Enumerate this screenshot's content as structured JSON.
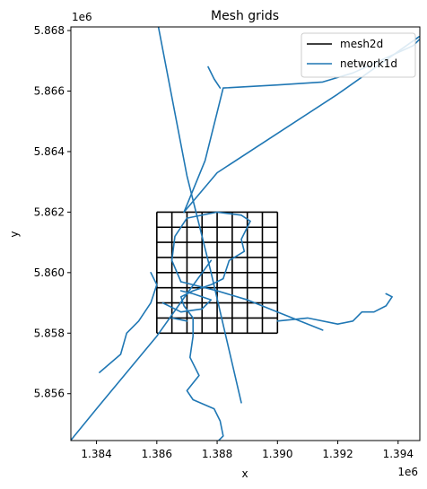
{
  "chart_data": {
    "type": "line",
    "title": "Mesh grids",
    "xlabel": "x",
    "ylabel": "y",
    "x_offset_text": "1e6",
    "y_offset_text": "1e6",
    "xlim": [
      1.38315,
      1.39472
    ],
    "ylim": [
      5.85445,
      5.86812
    ],
    "x_ticks": [
      1.384,
      1.386,
      1.388,
      1.39,
      1.392,
      1.394
    ],
    "x_tick_labels": [
      "1.384",
      "1.386",
      "1.388",
      "1.390",
      "1.392",
      "1.394"
    ],
    "y_ticks": [
      5.856,
      5.858,
      5.86,
      5.862,
      5.864,
      5.866,
      5.868
    ],
    "y_tick_labels": [
      "5.856",
      "5.858",
      "5.860",
      "5.862",
      "5.864",
      "5.866",
      "5.868"
    ],
    "grid": false,
    "legend": {
      "position": "top-right",
      "entries": [
        {
          "name": "mesh2d",
          "color": "#000000"
        },
        {
          "name": "network1d",
          "color": "#1f77b4"
        }
      ]
    },
    "series": [
      {
        "name": "mesh2d",
        "kind": "grid",
        "color": "#000000",
        "x_lines": [
          1.386,
          1.3865,
          1.387,
          1.3875,
          1.388,
          1.3885,
          1.389,
          1.3895,
          1.39
        ],
        "y_lines": [
          5.858,
          5.8585,
          5.859,
          5.8595,
          5.86,
          5.8605,
          5.861,
          5.8615,
          5.862
        ]
      },
      {
        "name": "network1d",
        "kind": "polylines",
        "color": "#1f77b4",
        "polylines": [
          [
            [
              1.3831,
              5.8544
            ],
            [
              1.384,
              5.8555
            ],
            [
              1.385,
              5.8567
            ],
            [
              1.386,
              5.8579
            ],
            [
              1.387,
              5.8593
            ],
            [
              1.3878,
              5.8604
            ]
          ],
          [
            [
              1.386,
              5.8684
            ],
            [
              1.387,
              5.8632
            ],
            [
              1.3878,
              5.86
            ],
            [
              1.3888,
              5.8557
            ]
          ],
          [
            [
              1.3869,
              5.862
            ],
            [
              1.388,
              5.8633
            ],
            [
              1.39,
              5.8646
            ],
            [
              1.392,
              5.8659
            ],
            [
              1.3947,
              5.8678
            ]
          ],
          [
            [
              1.3869,
              5.862
            ],
            [
              1.3876,
              5.8637
            ],
            [
              1.388,
              5.8653
            ],
            [
              1.3882,
              5.8661
            ],
            [
              1.39,
              5.8662
            ],
            [
              1.3915,
              5.8663
            ],
            [
              1.3925,
              5.8666
            ],
            [
              1.3945,
              5.8675
            ],
            [
              1.3947,
              5.8677
            ]
          ],
          [
            [
              1.3877,
              5.8668
            ],
            [
              1.3879,
              5.8664
            ],
            [
              1.3881,
              5.8661
            ]
          ],
          [
            [
              1.3868,
              5.8597
            ],
            [
              1.388,
              5.8594
            ],
            [
              1.389,
              5.8591
            ],
            [
              1.39,
              5.8587
            ],
            [
              1.3915,
              5.8581
            ]
          ],
          [
            [
              1.39,
              5.8584
            ],
            [
              1.391,
              5.8585
            ],
            [
              1.392,
              5.8583
            ],
            [
              1.3925,
              5.8584
            ],
            [
              1.3928,
              5.8587
            ],
            [
              1.3932,
              5.8587
            ],
            [
              1.3936,
              5.8589
            ],
            [
              1.3938,
              5.8592
            ],
            [
              1.3936,
              5.8593
            ]
          ],
          [
            [
              1.387,
              5.8618
            ],
            [
              1.388,
              5.862
            ],
            [
              1.3888,
              5.8619
            ],
            [
              1.3891,
              5.8617
            ],
            [
              1.3888,
              5.8611
            ],
            [
              1.3889,
              5.8607
            ],
            [
              1.3884,
              5.8604
            ],
            [
              1.3882,
              5.8598
            ],
            [
              1.3878,
              5.8596
            ],
            [
              1.3872,
              5.8594
            ],
            [
              1.3868,
              5.8592
            ],
            [
              1.3869,
              5.8589
            ],
            [
              1.3872,
              5.8585
            ],
            [
              1.3872,
              5.8579
            ],
            [
              1.3871,
              5.8572
            ],
            [
              1.3874,
              5.8566
            ],
            [
              1.387,
              5.8561
            ],
            [
              1.3872,
              5.8558
            ],
            [
              1.3879,
              5.8555
            ],
            [
              1.3881,
              5.8551
            ],
            [
              1.3882,
              5.8546
            ],
            [
              1.3878,
              5.8542
            ]
          ],
          [
            [
              1.3862,
              5.859
            ],
            [
              1.3868,
              5.8587
            ],
            [
              1.3875,
              5.8588
            ],
            [
              1.3878,
              5.8591
            ],
            [
              1.3872,
              5.8593
            ],
            [
              1.3868,
              5.8594
            ]
          ],
          [
            [
              1.387,
              5.8618
            ],
            [
              1.3866,
              5.8612
            ],
            [
              1.3865,
              5.8604
            ],
            [
              1.3868,
              5.8597
            ]
          ],
          [
            [
              1.3841,
              5.8567
            ],
            [
              1.3848,
              5.8573
            ],
            [
              1.385,
              5.858
            ],
            [
              1.3854,
              5.8584
            ],
            [
              1.3858,
              5.859
            ],
            [
              1.386,
              5.8596
            ],
            [
              1.3858,
              5.86
            ]
          ],
          [
            [
              1.3865,
              5.8585
            ],
            [
              1.387,
              5.8584
            ]
          ]
        ]
      }
    ]
  }
}
